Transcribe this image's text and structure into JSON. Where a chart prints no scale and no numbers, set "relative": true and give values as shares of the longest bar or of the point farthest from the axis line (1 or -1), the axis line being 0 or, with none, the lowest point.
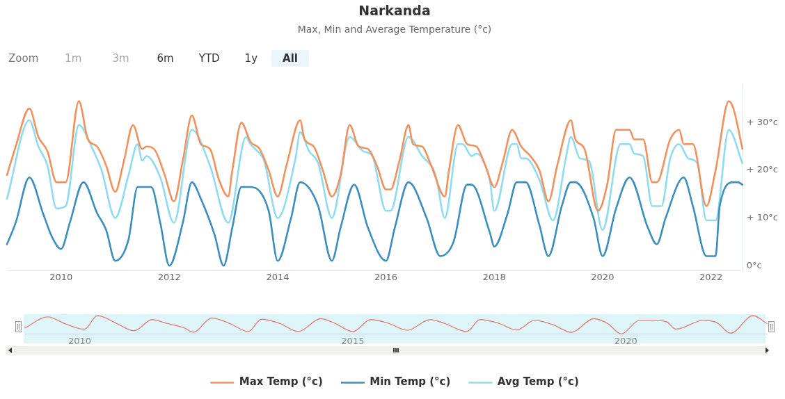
{
  "chart_data": [
    {
      "type": "line",
      "title": "Narkanda",
      "subtitle": "Max, Min and Average Temperature (°c)",
      "xlim": [
        "2009-01",
        "2022-08"
      ],
      "xticks": [
        "2010",
        "2012",
        "2014",
        "2016",
        "2018",
        "2020",
        "2022"
      ],
      "ylim": [
        -1,
        38
      ],
      "yticks": [
        {
          "value": 0,
          "label": "0°c"
        },
        {
          "value": 10,
          "label": "+ 10°c"
        },
        {
          "value": 20,
          "label": "+ 20°c"
        },
        {
          "value": 30,
          "label": "+ 30°c"
        }
      ],
      "legend": "bottom",
      "marker": "none",
      "line_style": "solid",
      "series": [
        {
          "name": "Max Temp (°c)",
          "color": "#f4915a",
          "x": [
            "2009-01",
            "2009-03",
            "2009-06",
            "2009-08",
            "2009-10",
            "2009-12",
            "2010-02",
            "2010-05",
            "2010-07",
            "2010-09",
            "2010-11",
            "2011-01",
            "2011-03",
            "2011-05",
            "2011-07",
            "2011-08",
            "2011-10",
            "2011-12",
            "2012-02",
            "2012-04",
            "2012-06",
            "2012-08",
            "2012-10",
            "2012-12",
            "2013-02",
            "2013-03",
            "2013-05",
            "2013-07",
            "2013-09",
            "2013-11",
            "2014-01",
            "2014-03",
            "2014-06",
            "2014-07",
            "2014-09",
            "2014-11",
            "2015-01",
            "2015-03",
            "2015-05",
            "2015-07",
            "2015-09",
            "2015-11",
            "2016-01",
            "2016-02",
            "2016-04",
            "2016-06",
            "2016-07",
            "2016-09",
            "2016-11",
            "2017-02",
            "2017-03",
            "2017-05",
            "2017-07",
            "2017-09",
            "2017-11",
            "2018-01",
            "2018-03",
            "2018-05",
            "2018-07",
            "2018-09",
            "2018-11",
            "2019-01",
            "2019-03",
            "2019-06",
            "2019-07",
            "2019-09",
            "2019-12",
            "2020-02",
            "2020-04",
            "2020-07",
            "2020-08",
            "2020-10",
            "2020-12",
            "2021-01",
            "2021-04",
            "2021-06",
            "2021-07",
            "2021-09",
            "2021-12",
            "2022-02",
            "2022-05",
            "2022-06",
            "2022-08"
          ],
          "values": [
            19,
            25,
            33,
            27,
            24,
            17.5,
            17.5,
            34.5,
            26.5,
            25,
            21,
            15.5,
            22,
            29.5,
            24.5,
            25,
            24,
            19,
            13.5,
            22,
            31.5,
            25.5,
            24.5,
            18,
            14.5,
            20,
            30,
            26,
            24.5,
            20,
            14.5,
            21,
            30.5,
            26.5,
            25,
            20,
            14.5,
            19,
            29.5,
            25,
            24.5,
            21,
            16,
            16,
            22,
            29.5,
            25.5,
            25,
            21,
            14.5,
            20,
            29.5,
            25.5,
            25,
            21,
            16.5,
            22,
            28.5,
            25,
            23,
            20,
            13.5,
            21,
            30.5,
            26.5,
            24.5,
            11.5,
            17,
            28.5,
            28.5,
            26.5,
            26.5,
            17.5,
            17.5,
            26.5,
            28.5,
            25.5,
            25.5,
            12.5,
            20,
            34.5,
            33,
            24.5
          ]
        },
        {
          "name": "Min Temp (°c)",
          "color": "#3a8fc0",
          "x": [
            "2009-01",
            "2009-03",
            "2009-06",
            "2009-09",
            "2009-11",
            "2010-01",
            "2010-03",
            "2010-06",
            "2010-09",
            "2010-11",
            "2011-01",
            "2011-04",
            "2011-06",
            "2011-09",
            "2011-11",
            "2012-01",
            "2012-04",
            "2012-06",
            "2012-08",
            "2012-11",
            "2013-01",
            "2013-03",
            "2013-05",
            "2013-07",
            "2013-11",
            "2014-01",
            "2014-04",
            "2014-06",
            "2014-10",
            "2015-01",
            "2015-03",
            "2015-06",
            "2015-09",
            "2016-01",
            "2016-03",
            "2016-06",
            "2016-10",
            "2017-01",
            "2017-04",
            "2017-07",
            "2017-08",
            "2017-12",
            "2018-01",
            "2018-04",
            "2018-06",
            "2018-08",
            "2018-11",
            "2019-01",
            "2019-04",
            "2019-06",
            "2019-07",
            "2019-11",
            "2020-01",
            "2020-04",
            "2020-07",
            "2020-11",
            "2021-01",
            "2021-03",
            "2021-07",
            "2021-09",
            "2021-12",
            "2022-02",
            "2022-03",
            "2022-06",
            "2022-07",
            "2022-08"
          ],
          "values": [
            4.5,
            9,
            18.5,
            11,
            6,
            3.5,
            9,
            17.5,
            11,
            7.5,
            1,
            5.5,
            16.5,
            16.5,
            9,
            0,
            9,
            17.5,
            14,
            6.5,
            0,
            8,
            16.5,
            16.5,
            11.5,
            1,
            10,
            17.5,
            12.5,
            1,
            8,
            17,
            8,
            1,
            8,
            17.5,
            10,
            2,
            5,
            17,
            17,
            7,
            4,
            11,
            17.5,
            17.5,
            8.5,
            2,
            12.5,
            17.5,
            17.5,
            10,
            2,
            12,
            18.5,
            8,
            4.5,
            10,
            18.5,
            12.5,
            2,
            2,
            12.5,
            17.5,
            17.5,
            17
          ]
        },
        {
          "name": "Avg Temp (°c)",
          "color": "#8fdcf2",
          "x": [
            "2009-01",
            "2009-06",
            "2009-08",
            "2009-10",
            "2009-12",
            "2010-02",
            "2010-05",
            "2010-08",
            "2010-10",
            "2011-01",
            "2011-04",
            "2011-06",
            "2011-07",
            "2011-08",
            "2011-11",
            "2012-02",
            "2012-06",
            "2012-10",
            "2013-02",
            "2013-06",
            "2013-07",
            "2013-08",
            "2013-10",
            "2014-01",
            "2014-05",
            "2014-06",
            "2014-08",
            "2014-10",
            "2015-01",
            "2015-05",
            "2015-08",
            "2015-10",
            "2016-01",
            "2016-02",
            "2016-06",
            "2016-09",
            "2016-12",
            "2017-02",
            "2017-05",
            "2017-06",
            "2017-08",
            "2017-09",
            "2017-12",
            "2018-01",
            "2018-05",
            "2018-06",
            "2018-07",
            "2018-08",
            "2018-11",
            "2019-02",
            "2019-05",
            "2019-06",
            "2019-08",
            "2019-10",
            "2020-01",
            "2020-05",
            "2020-07",
            "2020-08",
            "2020-10",
            "2020-12",
            "2021-02",
            "2021-04",
            "2021-06",
            "2021-08",
            "2021-10",
            "2021-12",
            "2022-02",
            "2022-05",
            "2022-08"
          ],
          "values": [
            14,
            30.5,
            25,
            21,
            12,
            12.5,
            29.5,
            24.5,
            20,
            10,
            19,
            25.5,
            22,
            23,
            18.5,
            9,
            28.5,
            21,
            9,
            27,
            25.5,
            24.5,
            22,
            10,
            22.5,
            28,
            24,
            21.5,
            10,
            27,
            24,
            23,
            11.5,
            11.5,
            27,
            23,
            19,
            10,
            25.5,
            25.5,
            23,
            23.5,
            18,
            11.5,
            25.5,
            25.5,
            22.5,
            22.5,
            18,
            9.5,
            23,
            27,
            22.5,
            22,
            7.5,
            25.5,
            25.5,
            23.5,
            23,
            12.5,
            12.5,
            22.5,
            25.5,
            22.5,
            21.5,
            9.5,
            9.5,
            28.5,
            21.5
          ]
        }
      ]
    },
    {
      "type": "other",
      "annotations": [
        "Zoom",
        "1m",
        "3m",
        "6m",
        "YTD",
        "1y",
        "All"
      ]
    },
    {
      "type": "line",
      "relative": true,
      "tick_labels": "x",
      "xlim": [
        "2009-01",
        "2022-08"
      ],
      "xticks": [
        "2010",
        "2015",
        "2020"
      ],
      "x": [
        "2009-01",
        "2009-06",
        "2009-10",
        "2010-02",
        "2010-05",
        "2010-09",
        "2011-01",
        "2011-05",
        "2011-08",
        "2011-12",
        "2012-02",
        "2012-06",
        "2012-10",
        "2013-02",
        "2013-05",
        "2013-09",
        "2014-01",
        "2014-06",
        "2014-09",
        "2015-01",
        "2015-05",
        "2015-09",
        "2016-01",
        "2016-06",
        "2016-09",
        "2017-02",
        "2017-05",
        "2017-09",
        "2018-01",
        "2018-05",
        "2018-09",
        "2019-01",
        "2019-06",
        "2019-09",
        "2019-12",
        "2020-04",
        "2020-07",
        "2020-10",
        "2020-12",
        "2021-06",
        "2021-09",
        "2021-12",
        "2022-05",
        "2022-08"
      ],
      "series": [
        {
          "color": "#e8807a",
          "values": [
            0.33,
            0.93,
            0.54,
            0.26,
            1,
            0.59,
            0.17,
            0.78,
            0.59,
            0.33,
            0.09,
            0.87,
            0.57,
            0.13,
            0.8,
            0.57,
            0.13,
            0.83,
            0.59,
            0.13,
            0.78,
            0.57,
            0.2,
            0.78,
            0.59,
            0.13,
            0.78,
            0.59,
            0.22,
            0.74,
            0.5,
            0.09,
            0.83,
            0.57,
            0,
            0.74,
            0.74,
            0.65,
            0.26,
            0.74,
            0.61,
            0.04,
            1,
            0.57
          ]
        }
      ]
    }
  ]
}
